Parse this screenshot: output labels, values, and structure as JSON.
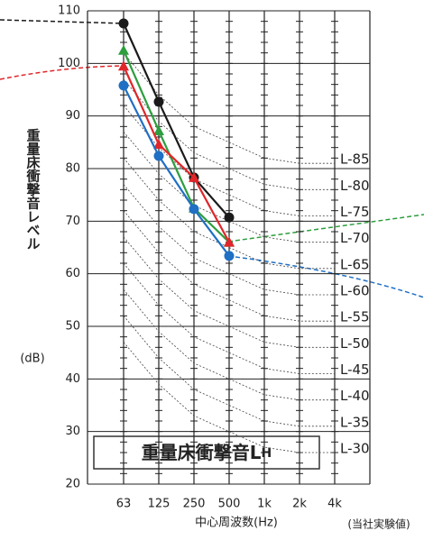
{
  "chart_data": {
    "type": "line",
    "y_label": "重量床衝撃音レベル",
    "y_unit": "(dB)",
    "x_label": "中心周波数(Hz)",
    "note": "(当社実験値)",
    "annotation": "重量床衝撃音L",
    "annotation_sub": "H",
    "categories": [
      "63",
      "125",
      "250",
      "500",
      "1k",
      "2k",
      "4k"
    ],
    "ylim": [
      20,
      110
    ],
    "yticks": [
      20,
      30,
      40,
      50,
      60,
      70,
      80,
      90,
      100,
      110
    ],
    "grid": true,
    "series": [
      {
        "name": null,
        "color": "#1a1a1a",
        "marker": "circle",
        "values": [
          107.6,
          92.7,
          78.3,
          70.7,
          null,
          null,
          null
        ]
      },
      {
        "name": null,
        "color": "#2e9e3e",
        "marker": "triangle",
        "values": [
          102.5,
          87.2,
          72.5,
          66,
          null,
          null,
          null
        ]
      },
      {
        "name": null,
        "color": "#e0262a",
        "marker": "triangle",
        "values": [
          99.5,
          84.6,
          78.3,
          66,
          null,
          null,
          null
        ]
      },
      {
        "name": null,
        "color": "#1f6fc4",
        "marker": "circle",
        "values": [
          95.8,
          82.4,
          72.3,
          63.4,
          null,
          null,
          null
        ]
      }
    ],
    "reference_curves": [
      {
        "name": "L-85",
        "values": [
          102,
          94,
          88,
          85,
          82,
          81,
          81
        ]
      },
      {
        "name": "L-80",
        "values": [
          97,
          89,
          83,
          80,
          77,
          76,
          76
        ]
      },
      {
        "name": "L-75",
        "values": [
          92,
          84,
          78,
          75,
          72,
          71,
          71
        ]
      },
      {
        "name": "L-70",
        "values": [
          87,
          79,
          73,
          70,
          67,
          66,
          66
        ]
      },
      {
        "name": "L-65",
        "values": [
          82,
          74,
          68,
          65,
          62,
          61,
          61
        ]
      },
      {
        "name": "L-60",
        "values": [
          77,
          69,
          63,
          60,
          57,
          56,
          56
        ]
      },
      {
        "name": "L-55",
        "values": [
          72,
          64,
          58,
          55,
          52,
          51,
          51
        ]
      },
      {
        "name": "L-50",
        "values": [
          67,
          59,
          53,
          50,
          47,
          46,
          46
        ]
      },
      {
        "name": "L-45",
        "values": [
          62,
          54,
          48,
          45,
          42,
          41,
          41
        ]
      },
      {
        "name": "L-40",
        "values": [
          57,
          49,
          43,
          40,
          37,
          36,
          36
        ]
      },
      {
        "name": "L-35",
        "values": [
          52,
          44,
          38,
          35,
          32,
          31,
          31
        ]
      },
      {
        "name": "L-30",
        "values": [
          47,
          39,
          33,
          30,
          27,
          26,
          26
        ]
      }
    ]
  }
}
